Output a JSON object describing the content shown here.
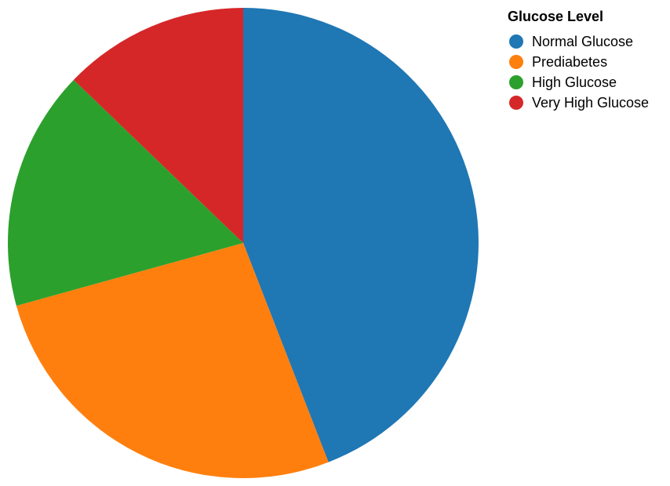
{
  "chart_data": {
    "type": "pie",
    "title": "",
    "legend_title": "Glucose Level",
    "legend_position": "top-right",
    "start_angle": "12 o'clock",
    "direction": "clockwise",
    "categories": [
      "Normal Glucose",
      "Prediabetes",
      "High Glucose",
      "Very High Glucose"
    ],
    "values": [
      44.1,
      26.6,
      16.5,
      12.8
    ],
    "unit": "percent of total (estimated)",
    "colors": [
      "#1f77b4",
      "#ff7f0e",
      "#2ca02c",
      "#d62728"
    ]
  }
}
